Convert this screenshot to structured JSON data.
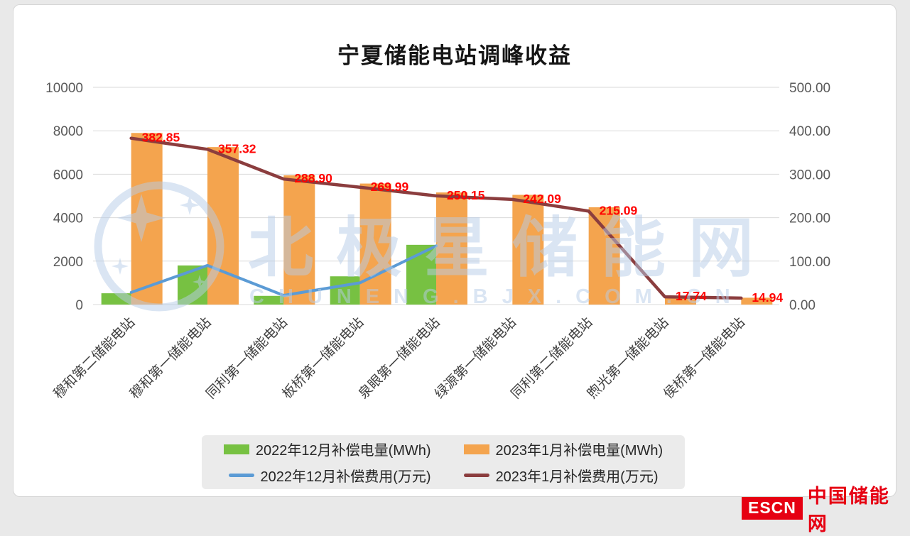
{
  "page": {
    "background": "#e9e9e9",
    "card_background": "#ffffff"
  },
  "chart_data": {
    "type": "combo-bar-line",
    "title": "宁夏储能电站调峰收益",
    "categories": [
      "穆和第二储能电站",
      "穆和第一储能电站",
      "同利第一储能电站",
      "板桥第一储能电站",
      "泉眼第一储能电站",
      "绿源第一储能电站",
      "同利第二储能电站",
      "煦光第一储能电站",
      "侯桥第一储能电站"
    ],
    "series": [
      {
        "name": "2022年12月补偿电量(MWh)",
        "type": "bar",
        "axis": "left",
        "color": "#77c142",
        "values": [
          520,
          1800,
          400,
          1300,
          2750,
          null,
          null,
          null,
          null
        ]
      },
      {
        "name": "2023年1月补偿电量(MWh)",
        "type": "bar",
        "axis": "left",
        "color": "#f4a44e",
        "values": [
          7900,
          7250,
          5950,
          5570,
          5160,
          5050,
          4480,
          370,
          315
        ]
      },
      {
        "name": "2022年12月补偿费用(万元)",
        "type": "line",
        "axis": "right",
        "color": "#5b9bd5",
        "values": [
          28,
          90,
          21,
          50,
          135,
          null,
          null,
          null,
          null
        ]
      },
      {
        "name": "2023年1月补偿费用(万元)",
        "type": "line",
        "axis": "right",
        "color": "#8b3d3e",
        "values": [
          382.85,
          357.32,
          288.9,
          269.99,
          250.15,
          242.09,
          215.09,
          17.74,
          14.94
        ],
        "labels": [
          "382.85",
          "357.32",
          "288.90",
          "269.99",
          "250.15",
          "242.09",
          "215.09",
          "17.74",
          "14.94"
        ],
        "label_color": "#ff0000"
      }
    ],
    "left_axis": {
      "min": 0,
      "max": 10000,
      "ticks": [
        "0",
        "2000",
        "4000",
        "6000",
        "8000",
        "10000"
      ]
    },
    "right_axis": {
      "min": 0,
      "max": 500,
      "ticks": [
        "0.00",
        "100.00",
        "200.00",
        "300.00",
        "400.00",
        "500.00"
      ]
    },
    "legend_position": "bottom",
    "grid": true
  },
  "watermark": {
    "brand_text": "北极星储能网",
    "url_text": "CHUNENG.BJX.COM.CN",
    "color": "#b7cde8"
  },
  "footer_logo": {
    "escn": "ESCN",
    "site_name": "中国储能网",
    "brand_red": "#e60012"
  }
}
